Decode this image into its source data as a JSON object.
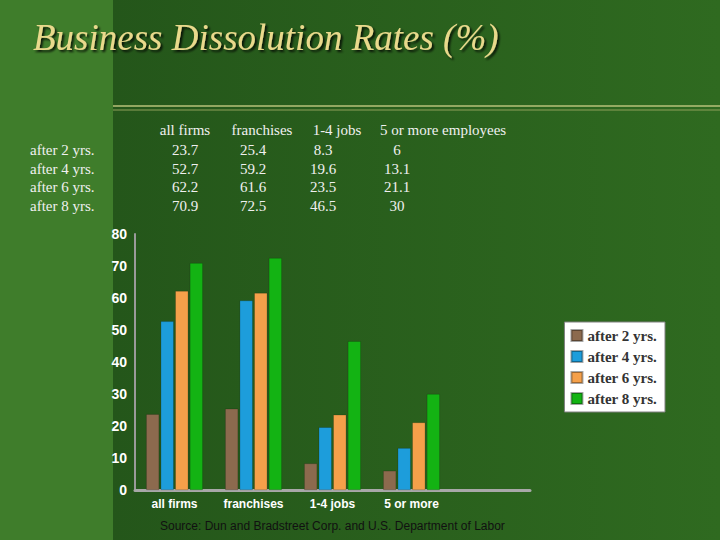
{
  "chart_data": {
    "type": "bar",
    "title": "Business Dissolution Rates (%)",
    "categories": [
      "all firms",
      "franchises",
      "1-4 jobs",
      "5 or more",
      null
    ],
    "series": [
      {
        "name": "after 2 yrs.",
        "color": "#8c6a4e",
        "values": [
          23.7,
          25.4,
          8.3,
          6,
          null
        ]
      },
      {
        "name": "after 4 yrs.",
        "color": "#1d9ddb",
        "values": [
          52.7,
          59.2,
          19.6,
          13.1,
          null
        ]
      },
      {
        "name": "after 6 yrs.",
        "color": "#f5a04a",
        "values": [
          62.2,
          61.6,
          23.5,
          21.1,
          null
        ]
      },
      {
        "name": "after 8 yrs.",
        "color": "#13b313",
        "values": [
          70.9,
          72.5,
          46.5,
          30,
          null
        ]
      }
    ],
    "ylim": [
      0,
      80
    ],
    "yticks": [
      0,
      10,
      20,
      30,
      40,
      50,
      60,
      70,
      80
    ],
    "grid": false,
    "legend": "right",
    "data_labels": false,
    "annotations": [
      "Source: Dun and Bradstreet Corp. and U.S. Department of Labor"
    ]
  },
  "table": {
    "columns": [
      "all firms",
      "franchises",
      "1-4 jobs",
      "5 or more employees"
    ],
    "rows": [
      {
        "label": "after 2 yrs.",
        "values": [
          23.7,
          25.4,
          8.3,
          6
        ]
      },
      {
        "label": "after 4 yrs.",
        "values": [
          52.7,
          59.2,
          19.6,
          13.1
        ]
      },
      {
        "label": "after 6 yrs.",
        "values": [
          62.2,
          61.6,
          23.5,
          21.1
        ]
      },
      {
        "label": "after 8 yrs.",
        "values": [
          70.9,
          72.5,
          46.5,
          30
        ]
      }
    ]
  }
}
